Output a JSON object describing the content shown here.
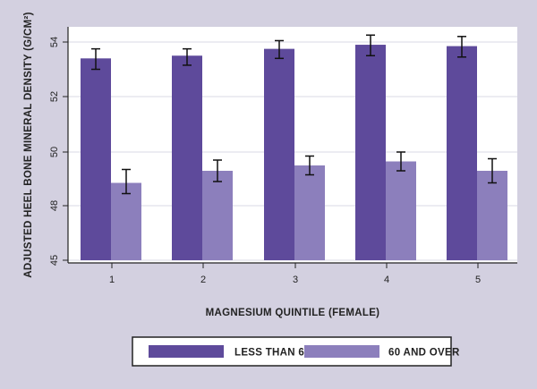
{
  "chart_data": {
    "type": "bar",
    "title": "",
    "xlabel": "MAGNESIUM QUINTILE (FEMALE)",
    "ylabel": "ADJUSTED HEEL BONE MINERAL DENSITY (G/CM²)",
    "categories": [
      "1",
      "2",
      "3",
      "4",
      "5"
    ],
    "ylim": [
      45,
      55
    ],
    "yticks": [
      45,
      48,
      50,
      52,
      54
    ],
    "grid": true,
    "legend_position": "bottom",
    "series": [
      {
        "name": "LESS THAN 60",
        "color": "#5e4a9b",
        "values": [
          53.4,
          53.5,
          53.75,
          53.9,
          53.85
        ],
        "err_low": [
          53.0,
          53.15,
          53.4,
          53.5,
          53.45
        ],
        "err_high": [
          53.75,
          53.75,
          54.05,
          54.25,
          54.2
        ]
      },
      {
        "name": "60 AND OVER",
        "color": "#8c7fbc",
        "values": [
          48.85,
          49.3,
          49.5,
          49.65,
          49.3
        ],
        "err_low": [
          48.45,
          48.9,
          49.15,
          49.3,
          48.85
        ],
        "err_high": [
          49.35,
          49.7,
          49.85,
          50.0,
          49.75
        ]
      }
    ]
  }
}
